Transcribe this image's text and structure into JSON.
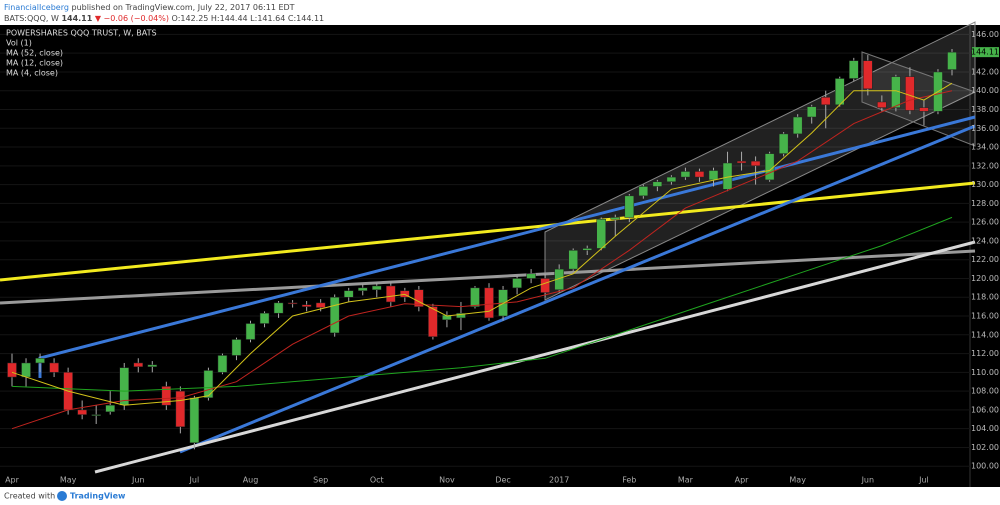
{
  "header": {
    "author": "FinancialIceberg",
    "published": "published on TradingView.com, July 22, 2017 06:11 EDT",
    "symbol": "BATS:QQQ, W",
    "last": "144.11",
    "change": "▼ −0.06 (−0.04%)",
    "ohlc": "O:142.25 H:144.44 L:141.64 C:144.11"
  },
  "footer": {
    "created": "Created with",
    "brand": "TradingView"
  },
  "chart_data": {
    "type": "candlestick",
    "title": "POWERSHARES QQQ TRUST, W, BATS",
    "volume_label": "Vol (1)",
    "categories": [
      "Apr",
      null,
      null,
      null,
      "May",
      null,
      null,
      null,
      null,
      "Jun",
      null,
      null,
      null,
      "Jul",
      null,
      null,
      null,
      "Aug",
      null,
      null,
      null,
      null,
      "Sep",
      null,
      null,
      null,
      "Oct",
      null,
      null,
      null,
      null,
      "Nov",
      null,
      null,
      null,
      "Dec",
      null,
      null,
      null,
      "2017",
      null,
      null,
      null,
      null,
      "Feb",
      null,
      null,
      null,
      "Mar",
      null,
      null,
      null,
      "Apr",
      null,
      null,
      null,
      "May",
      null,
      null,
      null,
      null,
      "Jun",
      null,
      null,
      null,
      "Jul",
      null,
      null
    ],
    "open": [
      111,
      109.5,
      111,
      111,
      110,
      106,
      105.5,
      105.8,
      106.5,
      111,
      110.6,
      108.5,
      108,
      102.5,
      107.3,
      110,
      111.8,
      113.5,
      115.2,
      116.3,
      117.4,
      117.2,
      117.4,
      114.2,
      118,
      118.7,
      118.8,
      119.2,
      118.7,
      118.8,
      117,
      115.6,
      115.8,
      117,
      119,
      116,
      119,
      120,
      120,
      118.8,
      121,
      123,
      123.2,
      126.3,
      126.5,
      128.8,
      129.8,
      130.3,
      130.8,
      131.4,
      130.5,
      129.5,
      132.5,
      132.5,
      130.5,
      133.3,
      135.4,
      137.2,
      139.3,
      138.5,
      141.3,
      143.2,
      138.8,
      138.2,
      141.5,
      138.2,
      137.8,
      142.25
    ],
    "high": [
      112,
      111.5,
      112,
      111.5,
      110.5,
      107,
      106.5,
      108,
      111,
      111.5,
      111.2,
      109,
      108.5,
      107.5,
      110.5,
      112,
      113.7,
      115.5,
      116.5,
      117.6,
      117.7,
      117.6,
      117.8,
      118.3,
      119,
      119.4,
      119.5,
      119.6,
      119,
      119.2,
      117.3,
      116.5,
      117.5,
      119.2,
      119.5,
      119.2,
      120.3,
      121,
      120.5,
      121.5,
      123.2,
      123.5,
      126.5,
      126.8,
      129,
      130,
      130.5,
      131,
      131.8,
      131.7,
      131.8,
      133.5,
      133.5,
      133,
      133.5,
      135.6,
      137.5,
      138.5,
      140,
      141.5,
      143.5,
      143.8,
      139.5,
      141.7,
      142.5,
      139,
      142.3,
      144.44
    ],
    "low": [
      108.5,
      108.5,
      110,
      109.5,
      105.5,
      105,
      104.5,
      105.5,
      106,
      110,
      110,
      106,
      103.5,
      101.8,
      107,
      109.8,
      111.3,
      113.2,
      114.8,
      115.8,
      116.9,
      116.5,
      116.5,
      113.8,
      117.5,
      118.2,
      118,
      117,
      117.5,
      116.5,
      113.5,
      114.8,
      114.5,
      116.8,
      115.5,
      115.5,
      118.3,
      119.5,
      118,
      118.5,
      120.8,
      122.5,
      123,
      124.5,
      126,
      128.5,
      129.3,
      130,
      130.5,
      130.3,
      129.8,
      129.3,
      131.5,
      130,
      130.3,
      133,
      135,
      136.5,
      136,
      138.3,
      141,
      139.5,
      137.8,
      137.8,
      137.5,
      136.3,
      137.5,
      141.64
    ],
    "close": [
      109.5,
      111,
      111.5,
      110,
      106,
      105.5,
      105.5,
      106.5,
      110.5,
      110.6,
      110.8,
      106.5,
      104.2,
      107.3,
      110.2,
      111.8,
      113.5,
      115.2,
      116.3,
      117.4,
      117.3,
      117,
      116.9,
      118,
      118.7,
      119,
      119.2,
      117.5,
      118,
      117,
      113.8,
      116.1,
      116.3,
      119,
      115.8,
      118.8,
      120,
      120.5,
      118.5,
      121,
      123,
      123.2,
      126.3,
      126.5,
      128.8,
      129.8,
      130.3,
      130.8,
      131.4,
      130.8,
      131.5,
      132.3,
      132.3,
      132,
      133.3,
      135.4,
      137.2,
      138.3,
      138.5,
      141.3,
      143.2,
      140.2,
      138.2,
      141.5,
      137.9,
      137.8,
      142,
      144.11
    ],
    "up_color": "#46b34a",
    "down_color": "#e0292b",
    "series": [
      {
        "name": "MA (52, close)",
        "color": "#1fa51f",
        "x": [
          0,
          8,
          16,
          24,
          32,
          38,
          44,
          50,
          56,
          62,
          67
        ],
        "values": [
          108.5,
          108,
          108.5,
          109.5,
          110.5,
          111.5,
          114.5,
          117.5,
          120.5,
          123.5,
          126.5
        ]
      },
      {
        "name": "MA (12, close)",
        "color": "#c0241f",
        "x": [
          0,
          4,
          8,
          12,
          16,
          20,
          24,
          28,
          32,
          36,
          40,
          44,
          48,
          52,
          56,
          60,
          64,
          67
        ],
        "values": [
          104,
          106,
          107,
          107.3,
          109,
          113,
          116,
          117.3,
          117,
          117.5,
          119,
          123,
          127.5,
          130,
          132.5,
          136.5,
          139,
          140
        ]
      },
      {
        "name": "MA (4, close)",
        "color": "#d2c21a",
        "x": [
          0,
          4,
          8,
          12,
          14,
          17,
          20,
          24,
          28,
          31,
          34,
          37,
          40,
          43,
          47,
          51,
          54,
          57,
          60,
          63,
          65,
          67
        ],
        "values": [
          110,
          108,
          106.5,
          107,
          107.5,
          112,
          116,
          117.5,
          118.3,
          116,
          116.5,
          119,
          120.5,
          124.5,
          129.5,
          130.8,
          131.5,
          135.5,
          140,
          140,
          139,
          140.8
        ]
      }
    ],
    "ylim": [
      98,
      147
    ],
    "yticks": [
      {
        "value": 100,
        "label": "100.00"
      },
      {
        "value": 102,
        "label": "102.00"
      },
      {
        "value": 104,
        "label": "104.00"
      },
      {
        "value": 106,
        "label": "106.00"
      },
      {
        "value": 108,
        "label": "108.00"
      },
      {
        "value": 110,
        "label": "110.00"
      },
      {
        "value": 112,
        "label": "112.00"
      },
      {
        "value": 114,
        "label": "114.00"
      },
      {
        "value": 116,
        "label": "116.00"
      },
      {
        "value": 118,
        "label": "118.00"
      },
      {
        "value": 120,
        "label": "120.00"
      },
      {
        "value": 122,
        "label": "122.00"
      },
      {
        "value": 124,
        "label": "124.00"
      },
      {
        "value": 126,
        "label": "126.00"
      },
      {
        "value": 128,
        "label": "128.00"
      },
      {
        "value": 130,
        "label": "130.00"
      },
      {
        "value": 132,
        "label": "132.00"
      },
      {
        "value": 134,
        "label": "134.00"
      },
      {
        "value": 136,
        "label": "136.00"
      },
      {
        "value": 138,
        "label": "138.00"
      },
      {
        "value": 140,
        "label": "140.00"
      },
      {
        "value": 142,
        "label": "142.00"
      },
      {
        "value": 144,
        "label": "144.00"
      },
      {
        "value": 146,
        "label": "146.00"
      }
    ],
    "grid": true
  }
}
